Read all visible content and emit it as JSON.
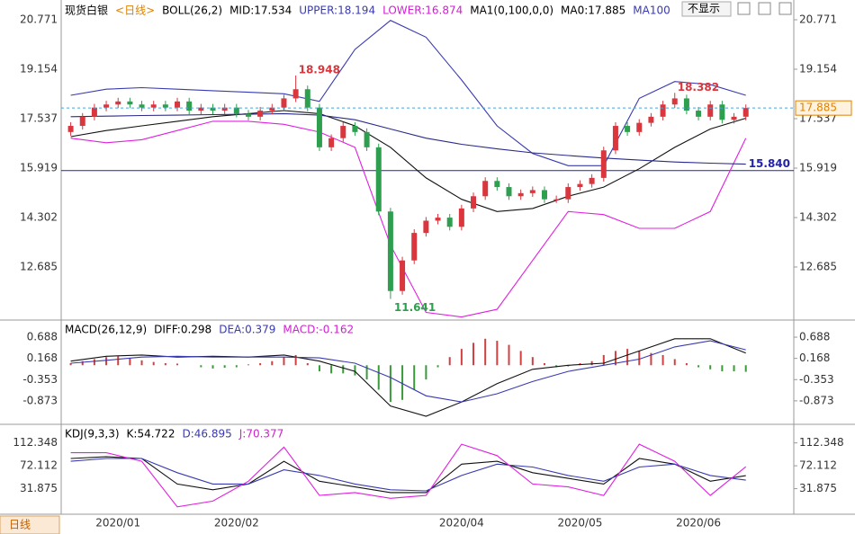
{
  "chart_data": [
    {
      "type": "candlestick",
      "legend": [
        {
          "text": "现货白银",
          "color": "#000000"
        },
        {
          "text": "<日线>",
          "color": "#e08000"
        },
        {
          "text": "BOLL(26,2)",
          "color": "#000000"
        },
        {
          "text": "MID:17.534",
          "color": "#000000"
        },
        {
          "text": "UPPER:18.194",
          "color": "#3a3ab0"
        },
        {
          "text": "LOWER:16.874",
          "color": "#d020d0"
        },
        {
          "text": "MA1(0,100,0,0)",
          "color": "#000000"
        },
        {
          "text": "MA0:17.885",
          "color": "#000000"
        },
        {
          "text": "MA100",
          "color": "#3a3ab0"
        }
      ],
      "categories": [
        null,
        null,
        null,
        null,
        "2020/01",
        null,
        null,
        null,
        null,
        null,
        null,
        null,
        null,
        null,
        "2020/02",
        null,
        null,
        null,
        null,
        null,
        null,
        null,
        null,
        null,
        null,
        null,
        null,
        null,
        null,
        null,
        null,
        null,
        null,
        "2020/04",
        null,
        null,
        null,
        null,
        null,
        null,
        null,
        null,
        null,
        "2020/05",
        null,
        null,
        null,
        null,
        null,
        null,
        null,
        null,
        null,
        "2020/06",
        null,
        null,
        null,
        null
      ],
      "open": [
        17.1,
        17.3,
        17.6,
        17.9,
        18.0,
        18.1,
        18.0,
        17.9,
        18.0,
        17.9,
        18.1,
        17.8,
        17.9,
        17.8,
        17.9,
        17.7,
        17.6,
        17.8,
        17.9,
        18.2,
        18.5,
        17.9,
        16.6,
        16.9,
        17.3,
        17.1,
        16.6,
        14.5,
        11.9,
        12.9,
        13.8,
        14.2,
        14.3,
        14.0,
        14.6,
        15.0,
        15.5,
        15.3,
        15.0,
        15.1,
        15.2,
        14.9,
        14.9,
        15.3,
        15.4,
        15.6,
        16.5,
        17.3,
        17.1,
        17.4,
        17.6,
        18.0,
        18.2,
        17.8,
        17.6,
        18.0,
        17.5,
        17.6
      ],
      "high": [
        17.42,
        17.72,
        18.02,
        18.12,
        18.22,
        18.22,
        18.12,
        18.12,
        18.12,
        18.22,
        18.22,
        18.02,
        18.02,
        18.02,
        18.02,
        17.82,
        17.92,
        18.02,
        18.32,
        18.948,
        18.62,
        18.02,
        17.02,
        17.42,
        17.42,
        17.22,
        16.72,
        14.62,
        13.02,
        13.92,
        14.32,
        14.42,
        14.42,
        14.72,
        15.12,
        15.62,
        15.62,
        15.42,
        15.22,
        15.32,
        15.32,
        15.02,
        15.42,
        15.52,
        15.72,
        16.62,
        17.42,
        17.42,
        17.52,
        17.72,
        18.12,
        18.382,
        18.32,
        17.92,
        18.12,
        18.12,
        17.72,
        18.0
      ],
      "low": [
        16.98,
        17.18,
        17.48,
        17.78,
        17.88,
        17.88,
        17.78,
        17.78,
        17.78,
        17.78,
        17.68,
        17.68,
        17.68,
        17.68,
        17.58,
        17.48,
        17.48,
        17.68,
        17.78,
        18.08,
        17.78,
        16.48,
        16.48,
        16.78,
        16.98,
        16.48,
        14.38,
        11.641,
        11.78,
        12.78,
        13.68,
        14.08,
        13.88,
        13.88,
        14.48,
        14.88,
        15.18,
        14.88,
        14.88,
        14.98,
        14.78,
        14.78,
        14.78,
        15.18,
        15.28,
        15.48,
        16.38,
        16.98,
        16.98,
        17.28,
        17.48,
        17.88,
        17.68,
        17.48,
        17.48,
        17.38,
        17.38,
        17.48
      ],
      "close": [
        17.3,
        17.6,
        17.9,
        18.0,
        18.1,
        18.0,
        17.9,
        18.0,
        17.9,
        18.1,
        17.8,
        17.9,
        17.8,
        17.9,
        17.7,
        17.6,
        17.8,
        17.9,
        18.2,
        18.5,
        17.9,
        16.6,
        16.9,
        17.3,
        17.1,
        16.6,
        14.5,
        11.9,
        12.9,
        13.8,
        14.2,
        14.3,
        14.0,
        14.6,
        15.0,
        15.5,
        15.3,
        15.0,
        15.1,
        15.2,
        14.9,
        14.9,
        15.3,
        15.4,
        15.6,
        16.5,
        17.3,
        17.1,
        17.4,
        17.6,
        18.0,
        18.2,
        17.8,
        17.6,
        18.0,
        17.5,
        17.6,
        17.885
      ],
      "up_color": "#d9363e",
      "down_color": "#2e9e4f",
      "price_line_color": "#4aa3d8",
      "lines": [
        {
          "color": "#3a3ab0",
          "values": [
            18.3,
            18.5,
            18.55,
            18.5,
            18.45,
            18.4,
            18.35,
            18.1,
            19.8,
            20.75,
            20.2,
            18.8,
            17.3,
            16.4,
            16.0,
            16.0,
            18.2,
            18.75,
            18.65,
            18.3
          ]
        },
        {
          "color": "#e020e0",
          "values": [
            16.9,
            16.75,
            16.85,
            17.15,
            17.45,
            17.45,
            17.35,
            17.1,
            16.6,
            13.4,
            11.2,
            11.05,
            11.3,
            12.9,
            14.5,
            14.4,
            13.95,
            13.95,
            14.5,
            16.9
          ]
        },
        {
          "color": "#111111",
          "values": [
            16.95,
            17.15,
            17.3,
            17.45,
            17.6,
            17.7,
            17.8,
            17.7,
            17.3,
            16.6,
            15.6,
            14.9,
            14.5,
            14.6,
            15.0,
            15.3,
            15.9,
            16.6,
            17.2,
            17.55
          ]
        },
        {
          "color": "#2a2a8a",
          "values": [
            17.6,
            17.62,
            17.64,
            17.65,
            17.67,
            17.68,
            17.7,
            17.65,
            17.5,
            17.2,
            16.9,
            16.7,
            16.55,
            16.42,
            16.33,
            16.25,
            16.18,
            16.12,
            16.08,
            16.05
          ]
        }
      ],
      "hline": {
        "value": 15.84,
        "value_label": "15.840",
        "color": "#2222aa"
      },
      "ylim": [
        11.009,
        21.271
      ],
      "yticks": [
        12.685,
        14.302,
        15.919,
        17.537,
        19.154,
        20.771
      ]
    },
    {
      "type": "macd",
      "legend": [
        {
          "text": "MACD(26,12,9)",
          "color": "#000000"
        },
        {
          "text": "DIFF:0.298",
          "color": "#000000"
        },
        {
          "text": "DEA:0.379",
          "color": "#3a3ab0"
        },
        {
          "text": "MACD:-0.162",
          "color": "#d020d0"
        }
      ],
      "histogram": [
        0.05,
        0.1,
        0.15,
        0.2,
        0.22,
        0.18,
        0.12,
        0.08,
        0.05,
        0.04,
        0.0,
        -0.05,
        -0.08,
        -0.06,
        -0.05,
        0.02,
        0.05,
        0.1,
        0.2,
        0.25,
        0.05,
        -0.15,
        -0.2,
        -0.2,
        -0.25,
        -0.35,
        -0.6,
        -0.9,
        -0.85,
        -0.6,
        -0.35,
        -0.05,
        0.2,
        0.4,
        0.55,
        0.65,
        0.6,
        0.5,
        0.35,
        0.2,
        0.05,
        -0.05,
        -0.03,
        0.05,
        0.1,
        0.25,
        0.35,
        0.4,
        0.35,
        0.3,
        0.25,
        0.15,
        0.05,
        -0.05,
        -0.1,
        -0.15,
        -0.15,
        -0.162
      ],
      "up_color": "#d04040",
      "down_color": "#3a9a3a",
      "lines": [
        {
          "color": "#111111",
          "values": [
            0.1,
            0.22,
            0.25,
            0.2,
            0.22,
            0.2,
            0.25,
            0.1,
            -0.15,
            -1.0,
            -1.25,
            -0.9,
            -0.45,
            -0.1,
            0.0,
            0.05,
            0.35,
            0.65,
            0.65,
            0.298
          ]
        },
        {
          "color": "#3a3ab0",
          "values": [
            0.05,
            0.12,
            0.2,
            0.22,
            0.2,
            0.2,
            0.2,
            0.18,
            0.05,
            -0.3,
            -0.75,
            -0.9,
            -0.7,
            -0.4,
            -0.15,
            0.0,
            0.15,
            0.45,
            0.6,
            0.379
          ]
        }
      ],
      "ylim": [
        -1.405,
        1.02
      ],
      "yticks": [
        -0.873,
        -0.353,
        0.168,
        0.688
      ]
    },
    {
      "type": "line",
      "legend": [
        {
          "text": "KDJ(9,3,3)",
          "color": "#000000"
        },
        {
          "text": "K:54.722",
          "color": "#000000"
        },
        {
          "text": "D:46.895",
          "color": "#3a3ab0"
        },
        {
          "text": "J:70.377",
          "color": "#d020d0"
        }
      ],
      "lines": [
        {
          "color": "#111111",
          "values": [
            85,
            88,
            85,
            40,
            30,
            40,
            80,
            45,
            35,
            25,
            25,
            75,
            80,
            60,
            50,
            40,
            85,
            75,
            45,
            54.722
          ]
        },
        {
          "color": "#3a3ab0",
          "values": [
            80,
            85,
            85,
            60,
            40,
            40,
            65,
            55,
            40,
            30,
            28,
            55,
            75,
            70,
            55,
            45,
            70,
            75,
            55,
            46.895
          ]
        },
        {
          "color": "#e020e0",
          "values": [
            95,
            95,
            80,
            0,
            10,
            45,
            105,
            20,
            25,
            15,
            20,
            110,
            90,
            40,
            35,
            20,
            110,
            80,
            20,
            70.377
          ]
        }
      ],
      "ylim": [
        -11.45,
        138.66
      ],
      "yticks": [
        31.875,
        72.112,
        112.348
      ]
    }
  ],
  "ui": {
    "button": "不显示",
    "tab": "日线"
  }
}
